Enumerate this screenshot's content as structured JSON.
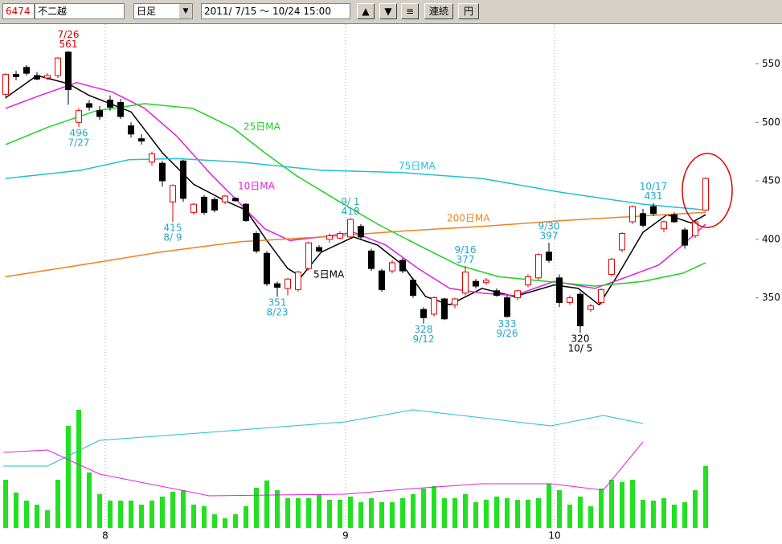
{
  "toolbar": {
    "code": "6474",
    "name": "不二越",
    "period": "日足",
    "range": "2011/ 7/15 ～ 10/24 15:00",
    "buttons": [
      "▲",
      "▼",
      "≡",
      "連続",
      "円"
    ]
  },
  "chart_data": {
    "type": "candlestick",
    "categories": [
      null,
      null,
      null,
      null,
      null,
      null,
      null,
      null,
      null,
      null,
      "8",
      null,
      null,
      null,
      null,
      null,
      null,
      null,
      null,
      null,
      null,
      null,
      null,
      null,
      null,
      null,
      null,
      null,
      null,
      null,
      null,
      null,
      null,
      "9",
      null,
      null,
      null,
      null,
      null,
      null,
      null,
      null,
      null,
      null,
      null,
      null,
      null,
      null,
      null,
      null,
      null,
      null,
      null,
      "10",
      null,
      null,
      null,
      null,
      null,
      null,
      null,
      null,
      null,
      null,
      null,
      null,
      null,
      null
    ],
    "open": [
      524,
      541,
      547,
      540,
      538,
      540,
      560,
      500,
      516,
      510,
      519,
      517,
      497,
      486,
      466,
      465,
      432,
      467,
      423,
      436,
      434,
      432,
      435,
      430,
      405,
      388,
      362,
      358,
      357,
      375,
      393,
      400,
      401,
      402,
      411,
      390,
      373,
      373,
      382,
      365,
      340,
      336,
      349,
      344,
      354,
      364,
      363,
      356,
      350,
      350,
      361,
      367,
      389,
      367,
      346,
      353,
      340,
      346,
      370,
      391,
      415,
      422,
      428,
      409,
      421,
      408,
      403,
      425
    ],
    "high": [
      542,
      544,
      549,
      543,
      542,
      556,
      561,
      512,
      519,
      514,
      523,
      520,
      500,
      490,
      475,
      467,
      447,
      468,
      431,
      438,
      436,
      438,
      436,
      431,
      407,
      390,
      364,
      367,
      373,
      398,
      395,
      405,
      407,
      418,
      413,
      392,
      375,
      382,
      384,
      367,
      342,
      351,
      350,
      350,
      377,
      366,
      367,
      358,
      352,
      357,
      370,
      388,
      397,
      370,
      352,
      355,
      345,
      358,
      384,
      406,
      429,
      426,
      431,
      416,
      423,
      410,
      416,
      453
    ],
    "low": [
      520,
      536,
      540,
      536,
      536,
      538,
      515,
      496,
      510,
      502,
      510,
      503,
      487,
      481,
      463,
      445,
      415,
      432,
      421,
      421,
      423,
      430,
      432,
      415,
      388,
      360,
      351,
      352,
      355,
      373,
      389,
      397,
      400,
      400,
      400,
      373,
      355,
      371,
      371,
      350,
      328,
      334,
      331,
      341,
      352,
      358,
      361,
      351,
      333,
      348,
      359,
      365,
      380,
      342,
      344,
      320,
      338,
      344,
      368,
      389,
      413,
      410,
      420,
      406,
      414,
      392,
      401,
      424
    ],
    "close": [
      541,
      539,
      542,
      537,
      540,
      555,
      528,
      510,
      513,
      505,
      513,
      505,
      490,
      484,
      473,
      450,
      446,
      435,
      430,
      423,
      425,
      437,
      433,
      416,
      390,
      362,
      359,
      366,
      372,
      397,
      390,
      403,
      405,
      417,
      402,
      375,
      357,
      380,
      373,
      352,
      333,
      350,
      332,
      349,
      372,
      360,
      365,
      352,
      334,
      356,
      368,
      387,
      382,
      346,
      350,
      326,
      343,
      357,
      383,
      405,
      428,
      412,
      422,
      415,
      415,
      395,
      415,
      452
    ],
    "up_color": "#e00000",
    "down_color": "#000000",
    "ylim": [
      292,
      584
    ],
    "yticks": [
      350,
      400,
      450,
      500,
      550
    ],
    "grid": true,
    "ma_lines": [
      {
        "name": "5日MA",
        "color": "#000000",
        "x": [
          0,
          3,
          6,
          8,
          12,
          15,
          18,
          21,
          23,
          25,
          27,
          28.3,
          30.2,
          33.3,
          35.6,
          38,
          40.2,
          42.5,
          45.6,
          48.7,
          52.5,
          54.8,
          56.8,
          58.7,
          61,
          63.3,
          65.6,
          67
        ],
        "values": [
          521,
          540,
          533,
          523,
          509,
          474,
          447,
          433,
          425,
          399,
          375,
          368,
          389,
          402,
          395,
          378,
          351,
          344,
          358,
          351,
          361,
          358,
          344,
          371,
          406,
          421,
          414,
          421
        ]
      },
      {
        "name": "10日MA",
        "color": "#e020e0",
        "x": [
          0,
          3.3,
          6.8,
          10.2,
          13.3,
          16.4,
          19.5,
          22.5,
          24.8,
          27.2,
          30.2,
          33.3,
          36.4,
          39.5,
          42.5,
          45.6,
          48.7,
          52.5,
          56.4,
          59.5,
          62.5,
          64.8,
          67
        ],
        "values": [
          512,
          523,
          534,
          526,
          512,
          488,
          457,
          430,
          409,
          399,
          402,
          406,
          395,
          375,
          358,
          354,
          352,
          364,
          358,
          368,
          378,
          395,
          413
        ]
      },
      {
        "name": "25日MA",
        "color": "#20d020",
        "x": [
          0,
          4.1,
          8.7,
          13.3,
          17.9,
          21.8,
          24.8,
          27.9,
          31.8,
          35.6,
          39.5,
          43.3,
          47.2,
          51.8,
          56.4,
          61,
          64.8,
          67
        ],
        "values": [
          481,
          496,
          510,
          516,
          512,
          495,
          474,
          454,
          433,
          413,
          395,
          378,
          368,
          364,
          360,
          364,
          371,
          380
        ]
      },
      {
        "name": "75日MA",
        "color": "#20c0d0",
        "x": [
          0,
          7.2,
          11.8,
          16.4,
          22.5,
          30.2,
          37.9,
          45.6,
          53.3,
          61,
          67
        ],
        "values": [
          452,
          459,
          468,
          469,
          466,
          459,
          457,
          452,
          440,
          430,
          425
        ]
      },
      {
        "name": "200日MA",
        "color": "#f08020",
        "x": [
          0,
          7.2,
          14.8,
          22.5,
          30.2,
          37.9,
          45.6,
          53.3,
          61,
          67
        ],
        "values": [
          368,
          378,
          389,
          398,
          402,
          407,
          411,
          416,
          420,
          423
        ]
      }
    ],
    "annotations": [
      {
        "date": "7/26",
        "price": 561
      },
      {
        "date": "7/27",
        "price": 496
      },
      {
        "date": "8/ 9",
        "price": 415
      },
      {
        "date": "8/23",
        "price": 351
      },
      {
        "date": "9/ 1",
        "price": 418
      },
      {
        "date": "9/12",
        "price": 328
      },
      {
        "date": "9/16",
        "price": 377
      },
      {
        "date": "9/26",
        "price": 333
      },
      {
        "date": "9/30",
        "price": 397
      },
      {
        "date": "10/ 5",
        "price": 320
      },
      {
        "date": "10/17",
        "price": 431
      }
    ],
    "volume": {
      "color": "#22e022",
      "ylim": [
        0,
        192
      ],
      "values": [
        60,
        44,
        34,
        29,
        22,
        60,
        127,
        147,
        69,
        42,
        34,
        34,
        34,
        29,
        34,
        39,
        45,
        47,
        29,
        27,
        17,
        12,
        17,
        27,
        50,
        59,
        47,
        37,
        37,
        37,
        42,
        35,
        35,
        39,
        32,
        37,
        32,
        32,
        37,
        42,
        49,
        52,
        37,
        37,
        42,
        32,
        35,
        39,
        37,
        35,
        35,
        37,
        55,
        47,
        29,
        39,
        27,
        49,
        60,
        57,
        60,
        35,
        34,
        37,
        29,
        32,
        47,
        77
      ],
      "lines": [
        {
          "color": "#20c0d0",
          "x": [
            -0.2,
            4,
            9,
            19.5,
            32.5,
            39,
            45.6,
            52.2,
            57.2,
            61
          ],
          "values": [
            77,
            77,
            109,
            119,
            132,
            147,
            137,
            127,
            140,
            130
          ]
        },
        {
          "color": "#e020e0",
          "x": [
            -0.2,
            4,
            9,
            19.5,
            32.5,
            39,
            45.6,
            52.2,
            57.2,
            61
          ],
          "values": [
            94,
            97,
            67,
            40,
            42,
            49,
            55,
            55,
            47,
            107
          ]
        }
      ]
    }
  }
}
